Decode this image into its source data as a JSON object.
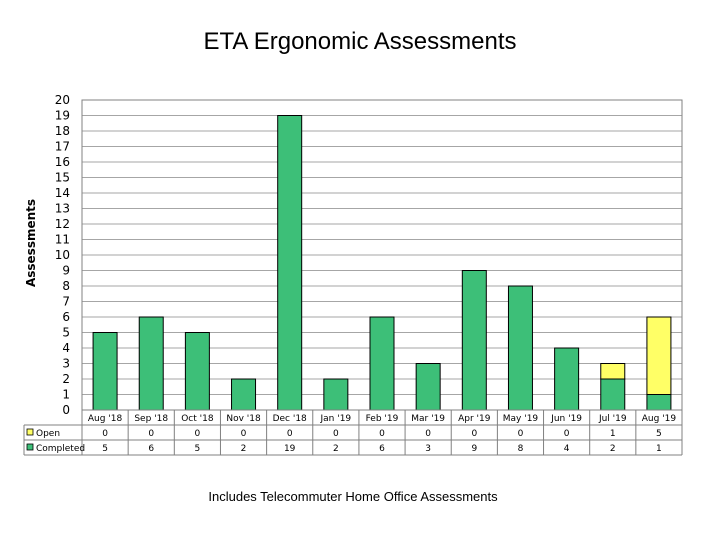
{
  "chart_data": {
    "type": "bar",
    "stacked": true,
    "title": "ETA Ergonomic Assessments",
    "ylabel": "Assessments",
    "ylim": [
      0,
      20
    ],
    "categories": [
      "Aug '18",
      "Sep '18",
      "Oct '18",
      "Nov '18",
      "Dec '18",
      "Jan '19",
      "Feb '19",
      "Mar '19",
      "Apr '19",
      "May '19",
      "Jun '19",
      "Jul '19",
      "Aug '19"
    ],
    "series": [
      {
        "name": "Completed",
        "color": "#3dbf78",
        "values": [
          5,
          6,
          5,
          2,
          19,
          2,
          6,
          3,
          9,
          8,
          4,
          2,
          1
        ]
      },
      {
        "name": "Open",
        "color": "#ffff66",
        "values": [
          0,
          0,
          0,
          0,
          0,
          0,
          0,
          0,
          0,
          0,
          0,
          1,
          5
        ]
      }
    ],
    "data_table": true,
    "legend_position": "data-table",
    "footnote": "Includes Telecommuter Home Office Assessments"
  }
}
